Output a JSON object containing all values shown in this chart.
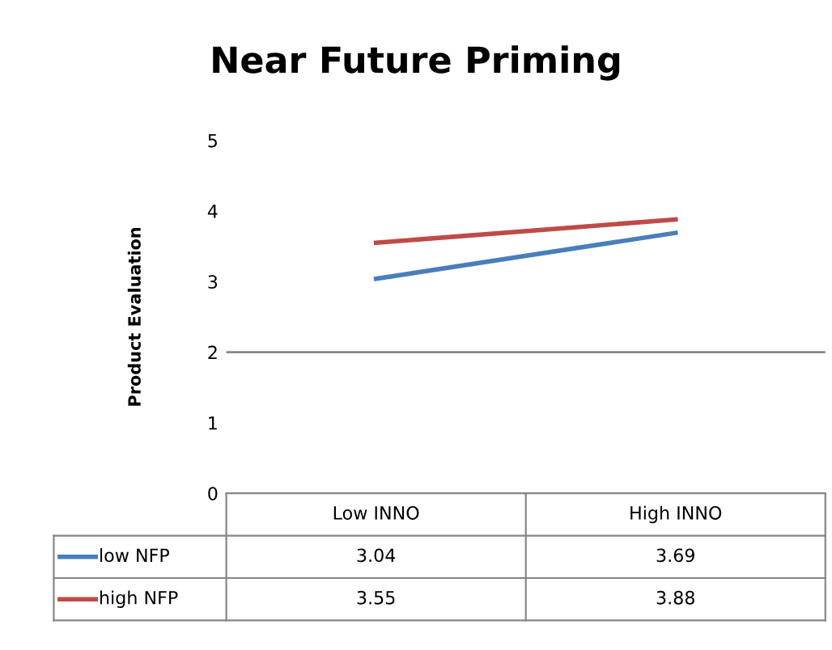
{
  "chart_data": {
    "type": "line",
    "title": "Near Future Priming",
    "ylabel": "Product Evaluation",
    "categories": [
      "Low INNO",
      "High INNO"
    ],
    "series": [
      {
        "name": "low NFP",
        "color": "#4a7ebb",
        "values": [
          3.04,
          3.69
        ]
      },
      {
        "name": "high NFP",
        "color": "#be4b48",
        "values": [
          3.55,
          3.88
        ]
      }
    ],
    "ylim": [
      0,
      5
    ],
    "yticks": [
      0,
      1,
      2,
      3,
      4,
      5
    ],
    "ref_lines": [
      {
        "axis": "y",
        "value": 2,
        "color": "#868686"
      }
    ],
    "data_labels": true,
    "legend": "bottom",
    "marker": "none",
    "line_style": "solid"
  }
}
